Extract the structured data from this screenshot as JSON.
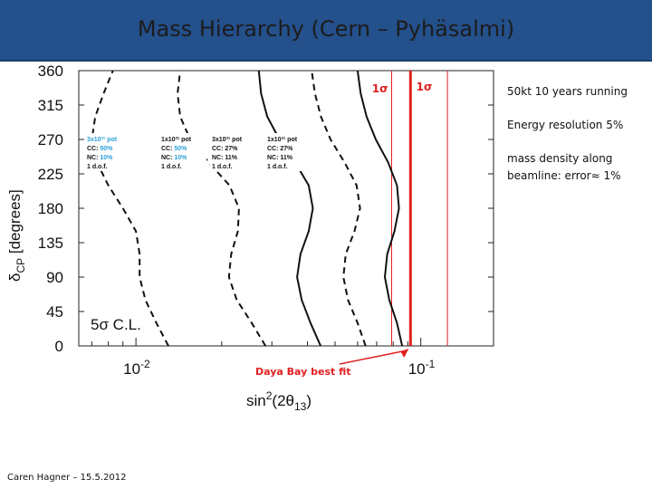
{
  "slide": {
    "title": "Mass Hierarchy (Cern – Pyhäsalmi)",
    "notes": [
      "50kt 10 years running",
      "Energy resolution 5%",
      "mass density along beamline: error≈ 1%"
    ],
    "footer": "Caren Hagner – 15.5.2012"
  },
  "chart_data": {
    "type": "line",
    "xlabel": "sin²(2θ13)",
    "ylabel": "δCP [degrees]",
    "xscale": "log",
    "xlim": [
      0.0063,
      0.18
    ],
    "ylim": [
      0,
      360
    ],
    "x_tick_labels": [
      "10-2",
      "10-1"
    ],
    "y_ticks": [
      0,
      45,
      90,
      135,
      180,
      225,
      270,
      315,
      360
    ],
    "confidence_label": "5σ C.L.",
    "y_samples": [
      0,
      30,
      60,
      90,
      120,
      150,
      180,
      210,
      240,
      270,
      300,
      330,
      360
    ],
    "series": [
      {
        "style": "dashed",
        "x": [
          0.013,
          0.0118,
          0.0108,
          0.0103,
          0.0103,
          0.01,
          0.009,
          0.008,
          0.0073,
          0.007,
          0.0072,
          0.0077,
          0.0083
        ]
      },
      {
        "style": "dashed",
        "x": [
          0.0285,
          0.0255,
          0.0226,
          0.0212,
          0.0216,
          0.0228,
          0.023,
          0.0213,
          0.018,
          0.0155,
          0.0143,
          0.014,
          0.0143
        ]
      },
      {
        "style": "solid",
        "x": [
          0.0445,
          0.041,
          0.0382,
          0.0368,
          0.0378,
          0.0404,
          0.0418,
          0.0404,
          0.0362,
          0.0319,
          0.0289,
          0.0275,
          0.027
        ]
      },
      {
        "style": "dashed",
        "x": [
          0.064,
          0.06,
          0.0555,
          0.0535,
          0.0545,
          0.0585,
          0.0612,
          0.0595,
          0.054,
          0.0482,
          0.0446,
          0.0425,
          0.0414
        ]
      },
      {
        "style": "solid",
        "x": [
          0.086,
          0.0825,
          0.0775,
          0.0748,
          0.0762,
          0.0808,
          0.0838,
          0.0825,
          0.0768,
          0.0695,
          0.0645,
          0.0615,
          0.06
        ]
      }
    ],
    "legend_boxes": [
      {
        "pot": "3x10²¹ pot",
        "cc": "50%",
        "nc": "10%",
        "dof": "1 d.o.f.",
        "cc_label": "CC:",
        "nc_label": "NC:",
        "highlight": "blue"
      },
      {
        "pot": "1x10²¹ pot",
        "cc": "50%",
        "nc": "10%",
        "dof": "1 d.o.f.",
        "cc_label": "CC:",
        "nc_label": "NC:",
        "highlight": "blue"
      },
      {
        "pot": "3x10²¹ pot",
        "cc": "27%",
        "nc": "11%",
        "dof": "1 d.o.f.",
        "cc_label": "CC:",
        "nc_label": "NC:",
        "highlight": "black"
      },
      {
        "pot": "1x10²¹ pot",
        "cc": "27%",
        "nc": "11%",
        "dof": "1 d.o.f.",
        "cc_label": "CC:",
        "nc_label": "NC:",
        "highlight": "black"
      }
    ],
    "daya_bay": {
      "label": "Daya Bay best fit",
      "best_fit": 0.092,
      "sigma_band": [
        0.079,
        0.124
      ],
      "band_label": "1σ",
      "color": "#e02020"
    }
  }
}
